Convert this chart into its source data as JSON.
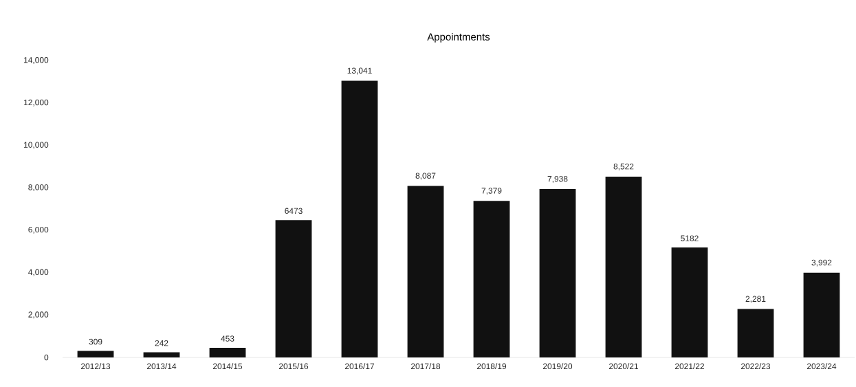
{
  "chart_data": {
    "type": "bar",
    "title": "Appointments",
    "categories": [
      "2012/13",
      "2013/14",
      "2014/15",
      "2015/16",
      "2016/17",
      "2017/18",
      "2018/19",
      "2019/20",
      "2020/21",
      "2021/22",
      "2022/23",
      "2023/24"
    ],
    "values": [
      309,
      242,
      453,
      6473,
      13041,
      8087,
      7379,
      7938,
      8522,
      5182,
      2281,
      3992
    ],
    "value_labels": [
      "309",
      "242",
      "453",
      "6473",
      "13,041",
      "8,087",
      "7,379",
      "7,938",
      "8,522",
      "5182",
      "2,281",
      "3,992"
    ],
    "color": "#111111",
    "ylim": [
      0,
      14000
    ],
    "yticks": [
      0,
      {
        "value": 2000,
        "label": "2,000"
      },
      {
        "value": 4000,
        "label": "4,000"
      },
      {
        "value": 6000,
        "label": "6,000"
      },
      {
        "value": 8000,
        "label": "8,000"
      },
      {
        "value": 10000,
        "label": "10,000"
      },
      {
        "value": 12000,
        "label": "12,000"
      },
      {
        "value": 14000,
        "label": "14,000"
      }
    ]
  }
}
